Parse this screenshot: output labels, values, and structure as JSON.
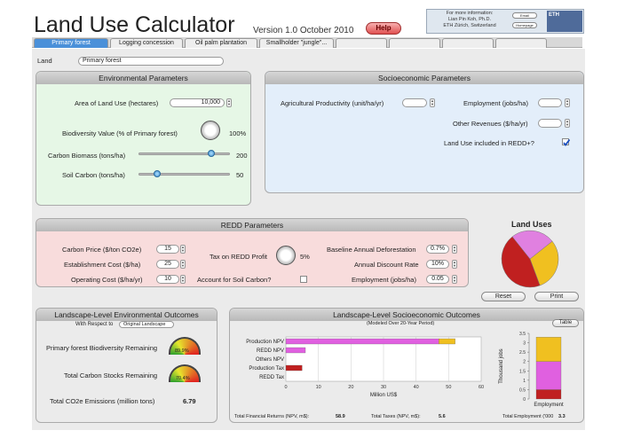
{
  "app": {
    "title": "Land Use Calculator",
    "version": "Version 1.0 October 2010",
    "help_label": "Help",
    "info_lines": [
      "For more information:",
      "Lian Pin Koh, Ph.D.",
      "ETH Zürich, Switzerland"
    ],
    "email_label": "Email",
    "homepage_label": "Homepage",
    "logo_text": "ETH"
  },
  "tabs": [
    {
      "label": "Primary forest",
      "active": true
    },
    {
      "label": "Logging concession"
    },
    {
      "label": "Oil palm plantation"
    },
    {
      "label": "Smallholder \"jungle\"..."
    },
    {
      "label": ""
    },
    {
      "label": ""
    },
    {
      "label": ""
    },
    {
      "label": ""
    }
  ],
  "land": {
    "label": "Land",
    "value": "Primary forest"
  },
  "environmental": {
    "title": "Environmental Parameters",
    "area_label": "Area of Land Use (hectares)",
    "area_value": "10,000",
    "biodiversity_label": "Biodiversity Value (% of Primary forest)",
    "biodiversity_value": "100%",
    "carbon_biomass_label": "Carbon Biomass (tons/ha)",
    "carbon_biomass_value": "200",
    "carbon_biomass_fraction": 0.8,
    "soil_carbon_label": "Soil Carbon (tons/ha)",
    "soil_carbon_value": "50",
    "soil_carbon_fraction": 0.2
  },
  "socioeconomic": {
    "title": "Socioeconomic Parameters",
    "agri_label": "Agricultural Productivity (unit/ha/yr)",
    "agri_value": "",
    "employment_label": "Employment (jobs/ha)",
    "employment_value": "",
    "other_revenues_label": "Other Revenues ($/ha/yr)",
    "other_revenues_value": "",
    "redd_label": "Land Use included in REDD+?",
    "redd_checked": true
  },
  "redd": {
    "title": "REDD Parameters",
    "carbon_price_label": "Carbon Price ($/ton CO2e)",
    "carbon_price_value": "15",
    "establishment_label": "Establishment Cost ($/ha)",
    "establishment_value": "25",
    "operating_label": "Operating Cost ($/ha/yr)",
    "operating_value": "10",
    "tax_label": "Tax on REDD Profit",
    "tax_value": "5%",
    "soil_carbon_label": "Account for Soil Carbon?",
    "baseline_label": "Baseline Annual Deforestation",
    "baseline_value": "0.7%",
    "discount_label": "Annual Discount Rate",
    "discount_value": "10%",
    "employment_label": "Employment (jobs/ha)",
    "employment_value": "0.05"
  },
  "land_uses": {
    "title": "Land Uses",
    "reset_label": "Reset",
    "print_label": "Print"
  },
  "env_outcomes": {
    "title": "Landscape-Level Environmental Outcomes",
    "respect_label": "With Respect to",
    "respect_value": "Original Landscape",
    "biodiversity_label": "Primary forest Biodiversity Remaining",
    "biodiversity_gauge": "89.9%",
    "carbon_label": "Total Carbon Stocks Remaining",
    "carbon_gauge": "70.4%",
    "co2_label": "Total CO2e Emissions (million tons)",
    "co2_value": "6.79"
  },
  "socio_outcomes": {
    "title": "Landscape-Level Socioeconomic Outcomes",
    "subtitle": "(Modeled Over 20-Year Period)",
    "table_label": "Table",
    "financial_label": "Total Financial Returns (NPV, m$):",
    "financial_value": "58.9",
    "taxes_label": "Total Taxes (NPV, m$):",
    "taxes_value": "5.6",
    "employment_label": "Total Employment ('000",
    "employment_value": "3.3"
  },
  "chart_data": [
    {
      "type": "bar",
      "orientation": "horizontal",
      "categories": [
        "Production NPV",
        "REDD NPV",
        "Others NPV",
        "Production Tax",
        "REDD Tax"
      ],
      "series": [
        {
          "values": [
            47,
            6,
            0,
            0,
            0
          ],
          "color": "#e060e0"
        },
        {
          "values": [
            5,
            0,
            0,
            0,
            0
          ],
          "color": "#f0c020"
        },
        {
          "values": [
            0,
            0,
            0,
            5,
            0
          ],
          "color": "#c02020"
        }
      ],
      "xlabel": "Million US$",
      "xticks": [
        0,
        10,
        20,
        30,
        40,
        50,
        60
      ],
      "xlim": [
        0,
        60
      ]
    },
    {
      "type": "bar",
      "stacked": true,
      "categories": [
        "Employment"
      ],
      "ylabel": "Thousand jobs",
      "yticks": [
        0,
        0.5,
        1,
        1.5,
        2,
        2.5,
        3,
        3.5
      ],
      "ylim": [
        0,
        3.5
      ],
      "segments": [
        {
          "value": 0.5,
          "color": "#c02020"
        },
        {
          "value": 1.5,
          "color": "#e060e0"
        },
        {
          "value": 1.3,
          "color": "#f0c020"
        }
      ]
    },
    {
      "type": "pie",
      "title": "Land Uses",
      "slices": [
        {
          "value": 0.3,
          "color": "#f0c020"
        },
        {
          "value": 0.45,
          "color": "#c02020"
        },
        {
          "value": 0.25,
          "color": "#e080e0"
        }
      ]
    }
  ],
  "colors": {
    "env_panel": "#e6f7e6",
    "socio_panel": "#e3eefa",
    "redd_panel": "#f8dcdc",
    "active_tab": "#4a90d9"
  }
}
